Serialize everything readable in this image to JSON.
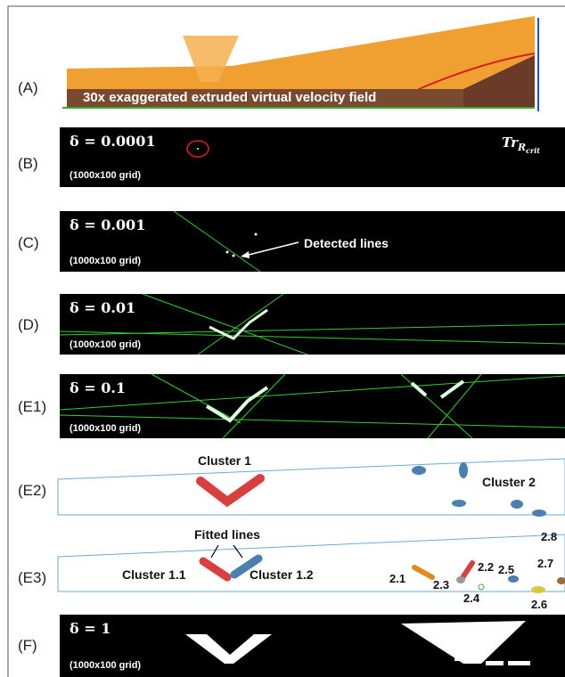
{
  "panels": [
    {
      "label": "(A)",
      "caption": "30x exaggerated extruded virtual velocity field"
    },
    {
      "label": "(B)",
      "delta": "δ = 0.0001",
      "grid": "(1000x100 grid)",
      "threshold": {
        "base": "Tr",
        "sub": "R",
        "subsub": "crit"
      }
    },
    {
      "label": "(C)",
      "delta": "δ = 0.001",
      "grid": "(1000x100 grid)",
      "annotation": "Detected lines"
    },
    {
      "label": "(D)",
      "delta": "δ = 0.01",
      "grid": "(1000x100 grid)"
    },
    {
      "label": "(E1)",
      "delta": "δ = 0.1",
      "grid": "(1000x100 grid)"
    },
    {
      "label": "(E2)",
      "clusters": [
        "Cluster 1",
        "Cluster 2"
      ]
    },
    {
      "label": "(E3)",
      "annotation": "Fitted lines",
      "clusters": [
        "Cluster 1.1",
        "Cluster 1.2",
        "2.1",
        "2.2",
        "2.3",
        "2.4",
        "2.5",
        "2.6",
        "2.7",
        "2.8"
      ]
    },
    {
      "label": "(F)",
      "delta": "δ = 1",
      "grid": "(1000x100 grid)"
    }
  ]
}
